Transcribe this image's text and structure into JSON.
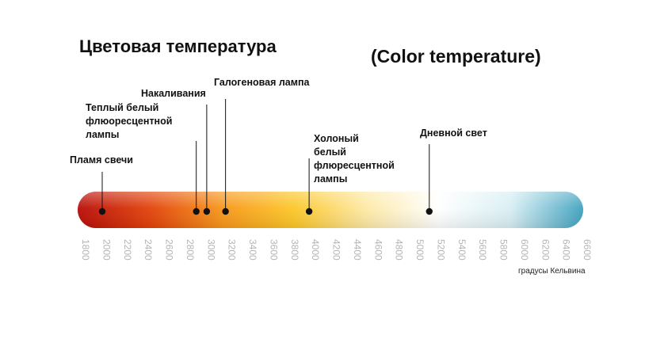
{
  "title_ru": "Цветовая температура",
  "title_en": "(Color temperature)",
  "unit": "градусы Кельвина",
  "axis": {
    "min": 1800,
    "max": 6600,
    "step": 200
  },
  "gradient_colors": [
    "#b80d07",
    "#e2420a",
    "#f7961a",
    "#fcc728",
    "#fde9a6",
    "#ffffff",
    "#d7eef3",
    "#3fa2bf"
  ],
  "markers": [
    {
      "name": "candle",
      "label": "Пламя свечи",
      "temp": 2020
    },
    {
      "name": "warm-white-fluorescent",
      "label": "Теплый белый\nфлюоресцентной\nлампы",
      "temp": 2920
    },
    {
      "name": "incandescent",
      "label": "Накаливания",
      "temp": 3020
    },
    {
      "name": "halogen",
      "label": "Галогеновая лампа",
      "temp": 3200
    },
    {
      "name": "cool-white-fluorescent",
      "label": "Холоный\nбелый\nфлюресцентной\nлампы",
      "temp": 4000
    },
    {
      "name": "daylight",
      "label": "Дневной свет",
      "temp": 5150
    }
  ]
}
